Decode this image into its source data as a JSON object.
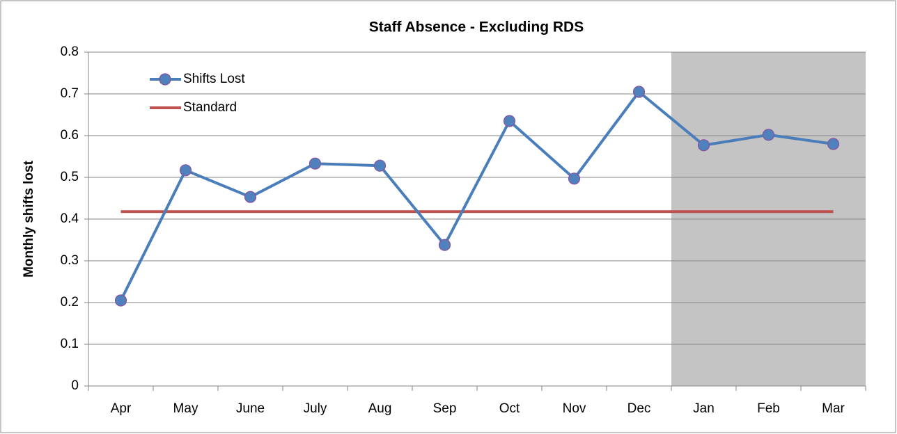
{
  "chart_data": {
    "type": "line",
    "title": "Staff Absence - Excluding RDS",
    "y_label": "Monthly shifts lost",
    "categories": [
      "Apr",
      "May",
      "June",
      "July",
      "Aug",
      "Sep",
      "Oct",
      "Nov",
      "Dec",
      "Jan",
      "Feb",
      "Mar"
    ],
    "series": [
      {
        "name": "Shifts Lost",
        "color": "#4a7ebb",
        "marker": "circle",
        "values": [
          0.205,
          0.517,
          0.453,
          0.533,
          0.528,
          0.338,
          0.635,
          0.497,
          0.705,
          0.577,
          0.602,
          0.58
        ]
      },
      {
        "name": "Standard",
        "color": "#c0504d",
        "values": [
          0.418,
          0.418,
          0.418,
          0.418,
          0.418,
          0.418,
          0.418,
          0.418,
          0.418,
          0.418,
          0.418,
          0.418
        ]
      }
    ],
    "shaded_categories": [
      "Jan",
      "Mar"
    ],
    "shade_color": "#c4c4c4",
    "ylim": [
      0,
      0.8
    ],
    "yticks": [
      0,
      0.1,
      0.2,
      0.3,
      0.4,
      0.5,
      0.6,
      0.7,
      0.8
    ],
    "grid": true,
    "legend": "top-left"
  }
}
